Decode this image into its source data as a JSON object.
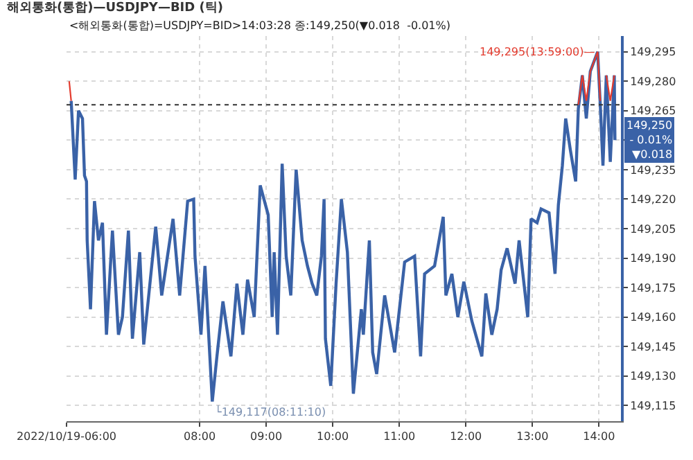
{
  "chart_data": {
    "type": "line",
    "title": "해외통화(통합)—USDJPY—BID (틱)",
    "subtitle": "<해외통화(통합)=USDJPY=BID>14:03:28 종:149,250(▼0.018  -0.01%)",
    "xlim": [
      6.0,
      14.33
    ],
    "ylim": [
      149107,
      149303
    ],
    "xticks": [
      {
        "value": 6,
        "label": "2022/10/19-06:00"
      },
      {
        "value": 8,
        "label": "08:00"
      },
      {
        "value": 9,
        "label": "09:00"
      },
      {
        "value": 10,
        "label": "10:00"
      },
      {
        "value": 11,
        "label": "11:00"
      },
      {
        "value": 12,
        "label": "12:00"
      },
      {
        "value": 13,
        "label": "13:00"
      },
      {
        "value": 14,
        "label": "14:00"
      }
    ],
    "yticks": [
      {
        "value": 149115,
        "label": "149,115"
      },
      {
        "value": 149130,
        "label": "149,130"
      },
      {
        "value": 149145,
        "label": "149,145"
      },
      {
        "value": 149160,
        "label": "149,160"
      },
      {
        "value": 149175,
        "label": "149,175"
      },
      {
        "value": 149190,
        "label": "149,190"
      },
      {
        "value": 149205,
        "label": "149,205"
      },
      {
        "value": 149220,
        "label": "149,220"
      },
      {
        "value": 149235,
        "label": "149,235"
      },
      {
        "value": 149250,
        "label": null
      },
      {
        "value": 149265,
        "label": "149,265"
      },
      {
        "value": 149280,
        "label": "149,280"
      },
      {
        "value": 149295,
        "label": "149,295"
      }
    ],
    "grid": true,
    "legend": false,
    "series": [
      {
        "color": "#3a62a7",
        "x": [
          6.07,
          6.13,
          6.18,
          6.24,
          6.27,
          6.3,
          6.31,
          6.36,
          6.42,
          6.48,
          6.54,
          6.6,
          6.69,
          6.78,
          6.84,
          6.93,
          6.99,
          7.1,
          7.16,
          7.34,
          7.43,
          7.6,
          7.7,
          7.82,
          7.91,
          7.93,
          8.02,
          8.08,
          8.19,
          8.26,
          8.35,
          8.47,
          8.56,
          8.65,
          8.72,
          8.82,
          8.91,
          9.03,
          9.09,
          9.12,
          9.17,
          9.24,
          9.3,
          9.37,
          9.45,
          9.54,
          9.62,
          9.69,
          9.76,
          9.83,
          9.87,
          9.89,
          9.97,
          10.05,
          10.13,
          10.22,
          10.31,
          10.43,
          10.46,
          10.55,
          10.6,
          10.66,
          10.78,
          10.93,
          11.08,
          11.23,
          11.32,
          11.38,
          11.53,
          11.66,
          11.7,
          11.79,
          11.88,
          11.97,
          12.09,
          12.24,
          12.3,
          12.39,
          12.47,
          12.53,
          12.62,
          12.74,
          12.8,
          12.93,
          12.98,
          13.07,
          13.13,
          13.25,
          13.34,
          13.39,
          13.45,
          13.5,
          13.57,
          13.65,
          13.69,
          13.75,
          13.81,
          13.87,
          13.98,
          14.02,
          14.06,
          14.11,
          14.17,
          14.23,
          14.24
        ],
        "values": [
          149270,
          149230,
          149265,
          149261,
          149232,
          149229,
          149199,
          149164,
          149219,
          149199,
          149208,
          149151,
          149204,
          149151,
          149160,
          149204,
          149149,
          149193,
          149146,
          149206,
          149171,
          149210,
          149171,
          149219,
          149220,
          149191,
          149151,
          149186,
          149117,
          149140,
          149168,
          149140,
          149177,
          149151,
          149179,
          149160,
          149227,
          149212,
          149160,
          149193,
          149151,
          149238,
          149191,
          149171,
          149235,
          149199,
          149186,
          149177,
          149171,
          149191,
          149220,
          149149,
          149125,
          149177,
          149220,
          149193,
          149121,
          149164,
          149151,
          149199,
          149142,
          149131,
          149171,
          149142,
          149188,
          149191,
          149140,
          149182,
          149186,
          149211,
          149171,
          149182,
          149160,
          149178,
          149158,
          149140,
          149172,
          149151,
          149164,
          149184,
          149195,
          149177,
          149199,
          149160,
          149210,
          149208,
          149215,
          149213,
          149182,
          149217,
          149237,
          149261,
          149245,
          149229,
          149266,
          149283,
          149261,
          149285,
          149295,
          149268,
          149237,
          149283,
          149239,
          149283,
          149250
        ]
      },
      {
        "color": "#e33b2e",
        "x": [
          6.04,
          6.07,
          6.1,
          13.69,
          13.75,
          13.81,
          13.87,
          13.98,
          14.02,
          14.06,
          14.11,
          14.17,
          14.23
        ],
        "values": [
          149280,
          149270,
          null,
          149268,
          149283,
          149270,
          149285,
          149295,
          149270,
          null,
          149283,
          149270,
          149283
        ]
      }
    ],
    "ref_lines": [
      {
        "axis": "y",
        "value": 149268,
        "color": "#333333",
        "line_style": "dotted"
      }
    ],
    "annotations": [
      {
        "text": "149,295(13:59:00)—",
        "x": 13.98,
        "y": 149295
      },
      {
        "text": "└149,117(08:11:10)",
        "x": 8.19,
        "y": 149117
      },
      {
        "text": "149,250\n- 0.01%\n▼0.018",
        "x": 14.33,
        "y": 149250
      }
    ]
  }
}
